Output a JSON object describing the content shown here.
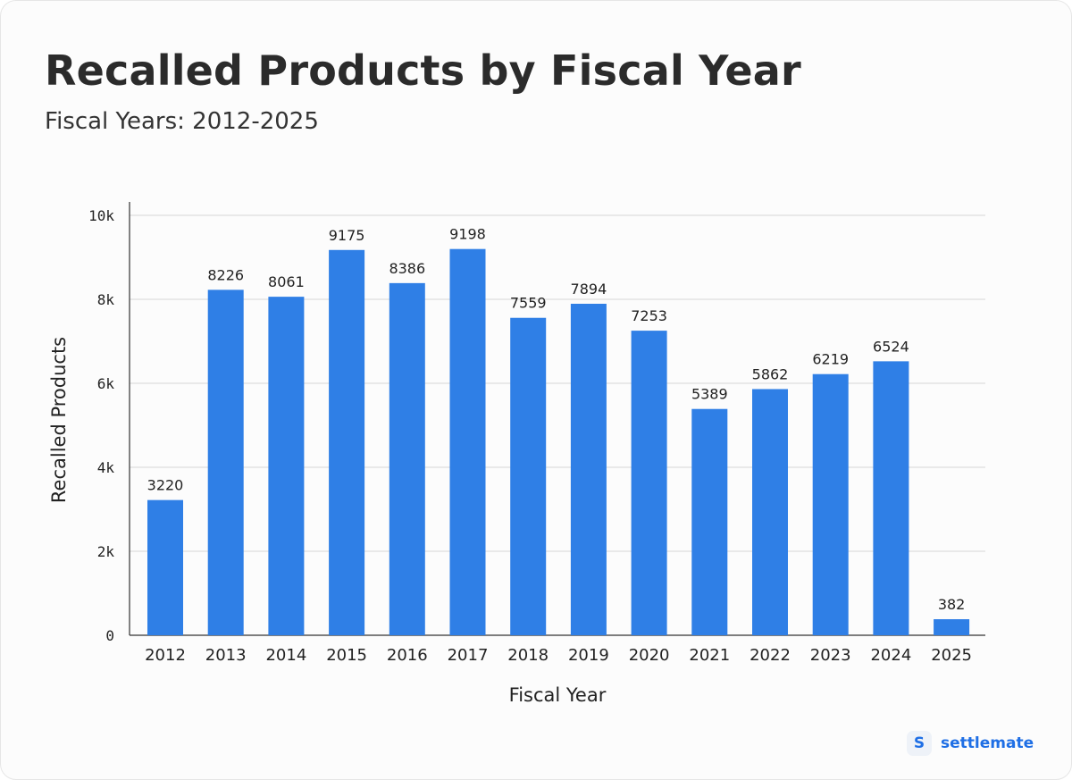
{
  "header": {
    "title": "Recalled Products by Fiscal Year",
    "subtitle": "Fiscal Years: 2012-2025"
  },
  "brand": {
    "mark": "S",
    "name": "settlemate",
    "color": "#1f6fe5"
  },
  "colors": {
    "bar": "#2f7fe6",
    "grid": "#d6d6d6",
    "axis": "#333333",
    "text": "#222222"
  },
  "chart_data": {
    "type": "bar",
    "title": "Recalled Products by Fiscal Year",
    "subtitle": "Fiscal Years: 2012-2025",
    "xlabel": "Fiscal Year",
    "ylabel": "Recalled Products",
    "categories": [
      "2012",
      "2013",
      "2014",
      "2015",
      "2016",
      "2017",
      "2018",
      "2019",
      "2020",
      "2021",
      "2022",
      "2023",
      "2024",
      "2025"
    ],
    "values": [
      3220,
      8226,
      8061,
      9175,
      8386,
      9198,
      7559,
      7894,
      7253,
      5389,
      5862,
      6219,
      6524,
      382
    ],
    "ylim": [
      0,
      10000
    ],
    "yticks": [
      0,
      2000,
      4000,
      6000,
      8000,
      10000
    ],
    "ytick_labels": [
      "0",
      "2k",
      "4k",
      "6k",
      "8k",
      "10k"
    ],
    "grid": true,
    "legend": "none"
  }
}
